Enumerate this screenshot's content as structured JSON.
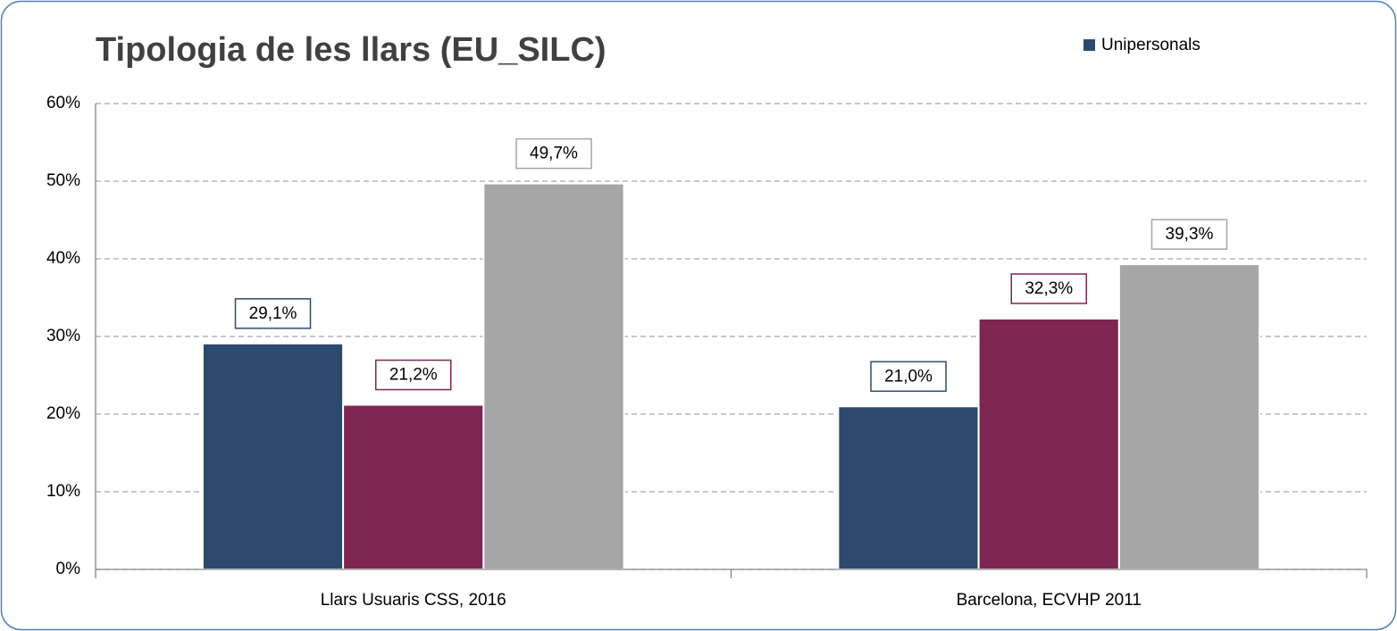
{
  "chart_data": {
    "type": "bar",
    "title": "Tipologia de les llars (EU_SILC)",
    "categories": [
      "Llars Usuaris CSS, 2016",
      "Barcelona, ECVHP 2011"
    ],
    "series": [
      {
        "name": "Unipersonals",
        "color": "#2c4a6e",
        "values": [
          29.1,
          21.0
        ],
        "value_labels": [
          "29,1%",
          "21,0%"
        ]
      },
      {
        "color": "#7f2551",
        "values": [
          21.2,
          32.3
        ],
        "value_labels": [
          "21,2%",
          "32,3%"
        ]
      },
      {
        "color": "#a6a6a6",
        "values": [
          49.7,
          39.3
        ],
        "value_labels": [
          "49,7%",
          "39,3%"
        ]
      }
    ],
    "ylim": [
      0,
      60
    ],
    "yticks": [
      {
        "value": 0,
        "label": "0%"
      },
      {
        "value": 10,
        "label": "10%"
      },
      {
        "value": 20,
        "label": "20%"
      },
      {
        "value": 30,
        "label": "30%"
      },
      {
        "value": 40,
        "label": "40%"
      },
      {
        "value": 50,
        "label": "50%"
      },
      {
        "value": 60,
        "label": "60%"
      }
    ],
    "grid": true,
    "legend": "top-right"
  }
}
